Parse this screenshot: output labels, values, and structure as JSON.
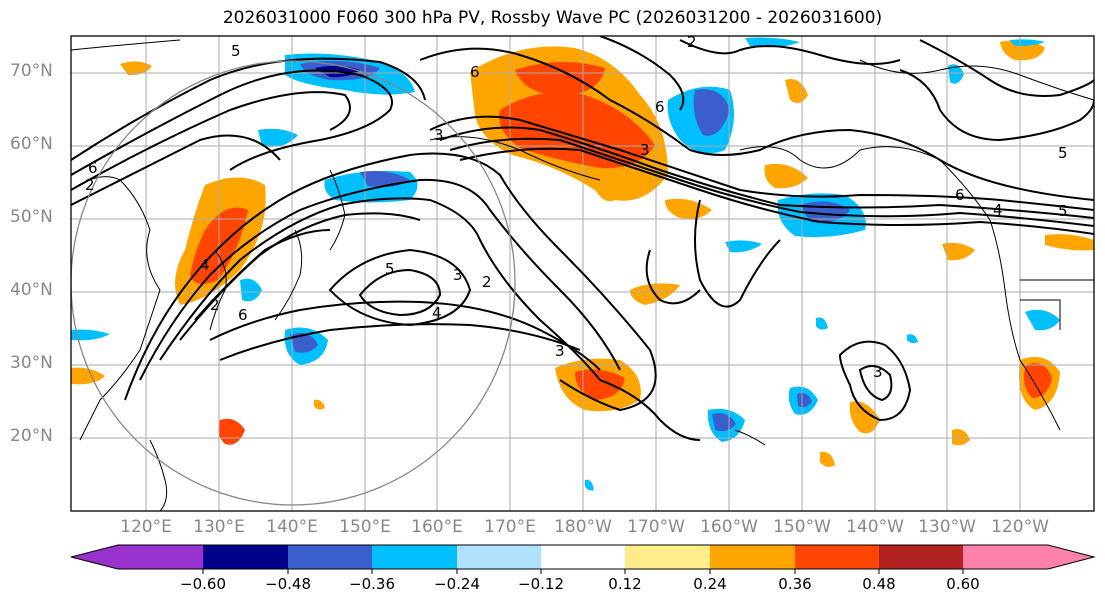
{
  "title": "2026031000 F060 300 hPa PV, Rossby Wave PC (2026031200 - 2026031600)",
  "map": {
    "lat_labels": [
      "70°N",
      "60°N",
      "50°N",
      "40°N",
      "30°N",
      "20°N"
    ],
    "lon_labels": [
      "120°E",
      "130°E",
      "140°E",
      "150°E",
      "160°E",
      "170°E",
      "180°W",
      "170°W",
      "160°W",
      "150°W",
      "140°W",
      "130°W",
      "120°W"
    ],
    "contour_labels": [
      "5",
      "3",
      "6",
      "6",
      "6",
      "2",
      "5",
      "4",
      "3",
      "2",
      "4",
      "5",
      "6",
      "4",
      "2",
      "3",
      "3",
      "6",
      "2",
      "3",
      "5"
    ]
  },
  "colorbar": {
    "ticks": [
      "−0.60",
      "−0.48",
      "−0.36",
      "−0.24",
      "−0.12",
      "0.12",
      "0.24",
      "0.36",
      "0.48",
      "0.60"
    ],
    "colors": [
      "#9932cc",
      "#00008b",
      "#3a5fcd",
      "#00bfff",
      "#b0e2ff",
      "#ffffff",
      "#ffec8b",
      "#ffa500",
      "#ff4500",
      "#b22222",
      "#ff82ab"
    ]
  }
}
